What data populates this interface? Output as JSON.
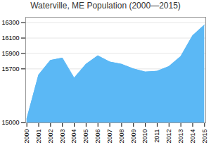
{
  "chart_data": {
    "type": "area",
    "title": "Waterville, ME Population (2000—2015)",
    "x": [
      2000,
      2001,
      2002,
      2003,
      2004,
      2005,
      2006,
      2007,
      2008,
      2009,
      2010,
      2011,
      2012,
      2013,
      2014,
      2015
    ],
    "values": [
      15050,
      15620,
      15810,
      15840,
      15580,
      15760,
      15870,
      15790,
      15760,
      15700,
      15660,
      15670,
      15730,
      15860,
      16130,
      16270
    ],
    "color": "#5BB8F5",
    "xlim": [
      1999.9,
      2015.1
    ],
    "xticks": [
      2000,
      2001,
      2002,
      2003,
      2004,
      2005,
      2006,
      2007,
      2008,
      2009,
      2010,
      2011,
      2012,
      2013,
      2014,
      2015
    ],
    "ylim": [
      15000,
      16370
    ],
    "yticks": [
      15000,
      15700,
      15900,
      16100,
      16300
    ],
    "grid": true
  }
}
